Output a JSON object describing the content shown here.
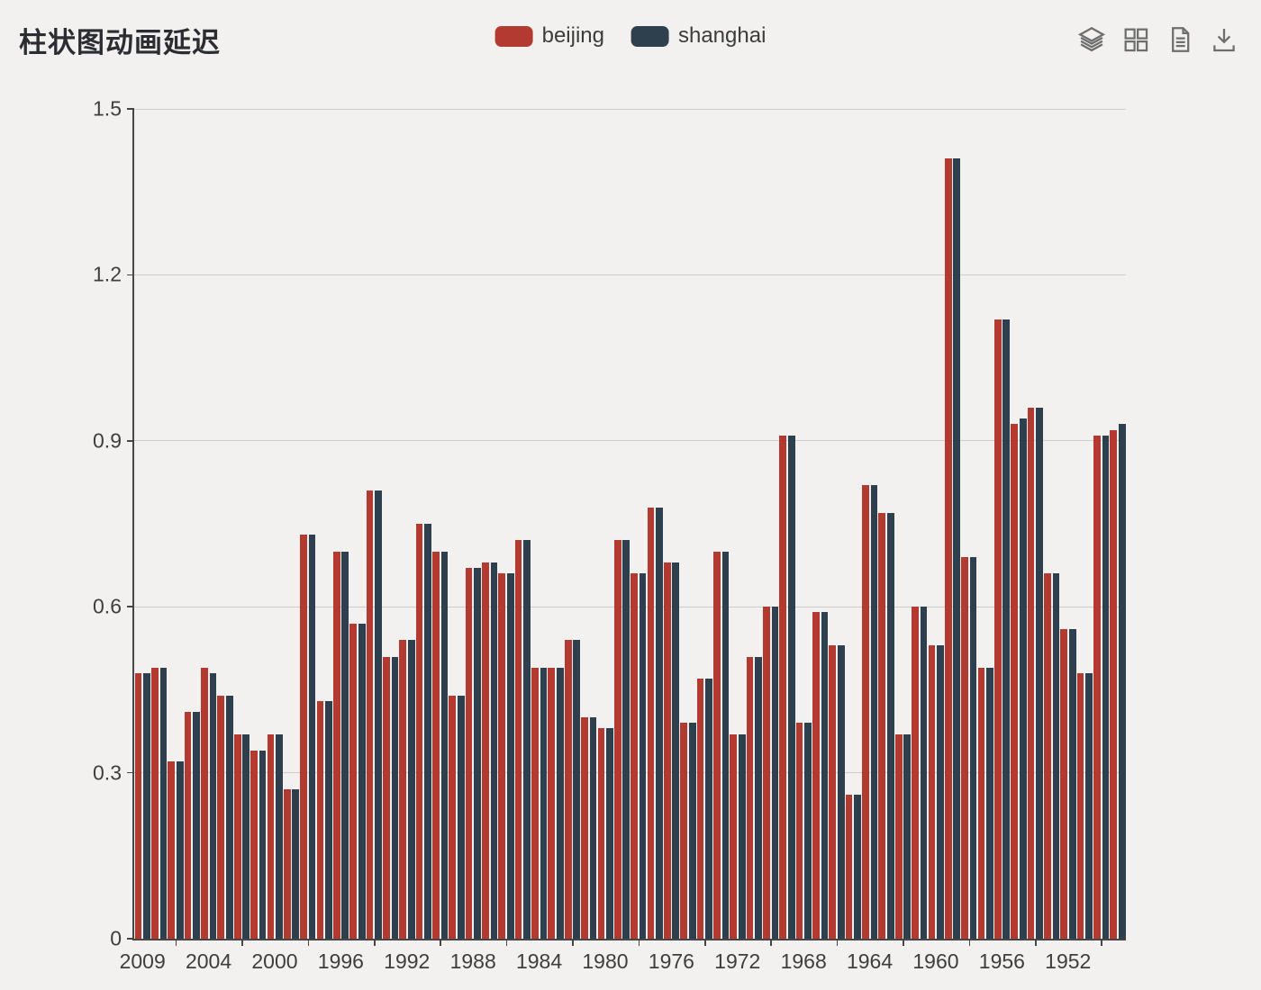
{
  "page": {
    "background_color": "#f2f1ef"
  },
  "title": {
    "text": "柱状图动画延迟"
  },
  "legend": {
    "items": [
      {
        "label": "beijing",
        "color": "#b23a31"
      },
      {
        "label": "shanghai",
        "color": "#2e3f4e"
      }
    ]
  },
  "toolbox": {
    "icons": [
      "stack",
      "tiled",
      "data-view",
      "save-as-image"
    ]
  },
  "chart_data": {
    "type": "bar",
    "title": "柱状图动画延迟",
    "legend_position": "top-center",
    "grid": true,
    "ylim": [
      0,
      1.5
    ],
    "y_tick_labels": [
      "0",
      "0.3",
      "0.6",
      "0.9",
      "1.2",
      "1.5"
    ],
    "x_axis_visible_labels": [
      "2009",
      "2004",
      "2000",
      "1996",
      "1992",
      "1988",
      "1984",
      "1980",
      "1976",
      "1972",
      "1968",
      "1964",
      "1960",
      "1956",
      "1952"
    ],
    "categories": [
      "2009",
      "2008",
      "2007",
      "2006",
      "2005",
      "2004",
      "2003",
      "2002",
      "2001",
      "2000",
      "1999",
      "1998",
      "1997",
      "1996",
      "1995",
      "1994",
      "1993",
      "1992",
      "1991",
      "1990",
      "1989",
      "1988",
      "1987",
      "1986",
      "1985",
      "1984",
      "1983",
      "1982",
      "1981",
      "1980",
      "1979",
      "1978",
      "1977",
      "1976",
      "1975",
      "1974",
      "1973",
      "1972",
      "1971",
      "1970",
      "1969",
      "1968",
      "1967",
      "1966",
      "1965",
      "1964",
      "1963",
      "1962",
      "1961",
      "1960",
      "1959",
      "1958",
      "1957",
      "1956",
      "1955",
      "1954",
      "1953",
      "1952",
      "1951",
      "1950"
    ],
    "series": [
      {
        "name": "beijing",
        "color": "#b23a31",
        "values": [
          0.48,
          0.49,
          0.32,
          0.41,
          0.49,
          0.44,
          0.37,
          0.34,
          0.37,
          0.27,
          0.73,
          0.43,
          0.7,
          0.57,
          0.81,
          0.51,
          0.54,
          0.75,
          0.7,
          0.44,
          0.67,
          0.68,
          0.66,
          0.72,
          0.49,
          0.49,
          0.54,
          0.4,
          0.38,
          0.72,
          0.66,
          0.78,
          0.68,
          0.39,
          0.47,
          0.7,
          0.37,
          0.51,
          0.6,
          0.91,
          0.39,
          0.59,
          0.53,
          0.26,
          0.82,
          0.77,
          0.37,
          0.6,
          0.53,
          1.41,
          0.69,
          0.49,
          1.12,
          0.93,
          0.96,
          0.66,
          0.56,
          0.48,
          0.91,
          0.92
        ]
      },
      {
        "name": "shanghai",
        "color": "#2e3f4e",
        "values": [
          0.48,
          0.49,
          0.32,
          0.41,
          0.48,
          0.44,
          0.37,
          0.34,
          0.37,
          0.27,
          0.73,
          0.43,
          0.7,
          0.57,
          0.81,
          0.51,
          0.54,
          0.75,
          0.7,
          0.44,
          0.67,
          0.68,
          0.66,
          0.72,
          0.49,
          0.49,
          0.54,
          0.4,
          0.38,
          0.72,
          0.66,
          0.78,
          0.68,
          0.39,
          0.47,
          0.7,
          0.37,
          0.51,
          0.6,
          0.91,
          0.39,
          0.59,
          0.53,
          0.26,
          0.82,
          0.77,
          0.37,
          0.6,
          0.53,
          1.41,
          0.69,
          0.49,
          1.12,
          0.94,
          0.96,
          0.66,
          0.56,
          0.48,
          0.91,
          0.93
        ]
      }
    ]
  }
}
